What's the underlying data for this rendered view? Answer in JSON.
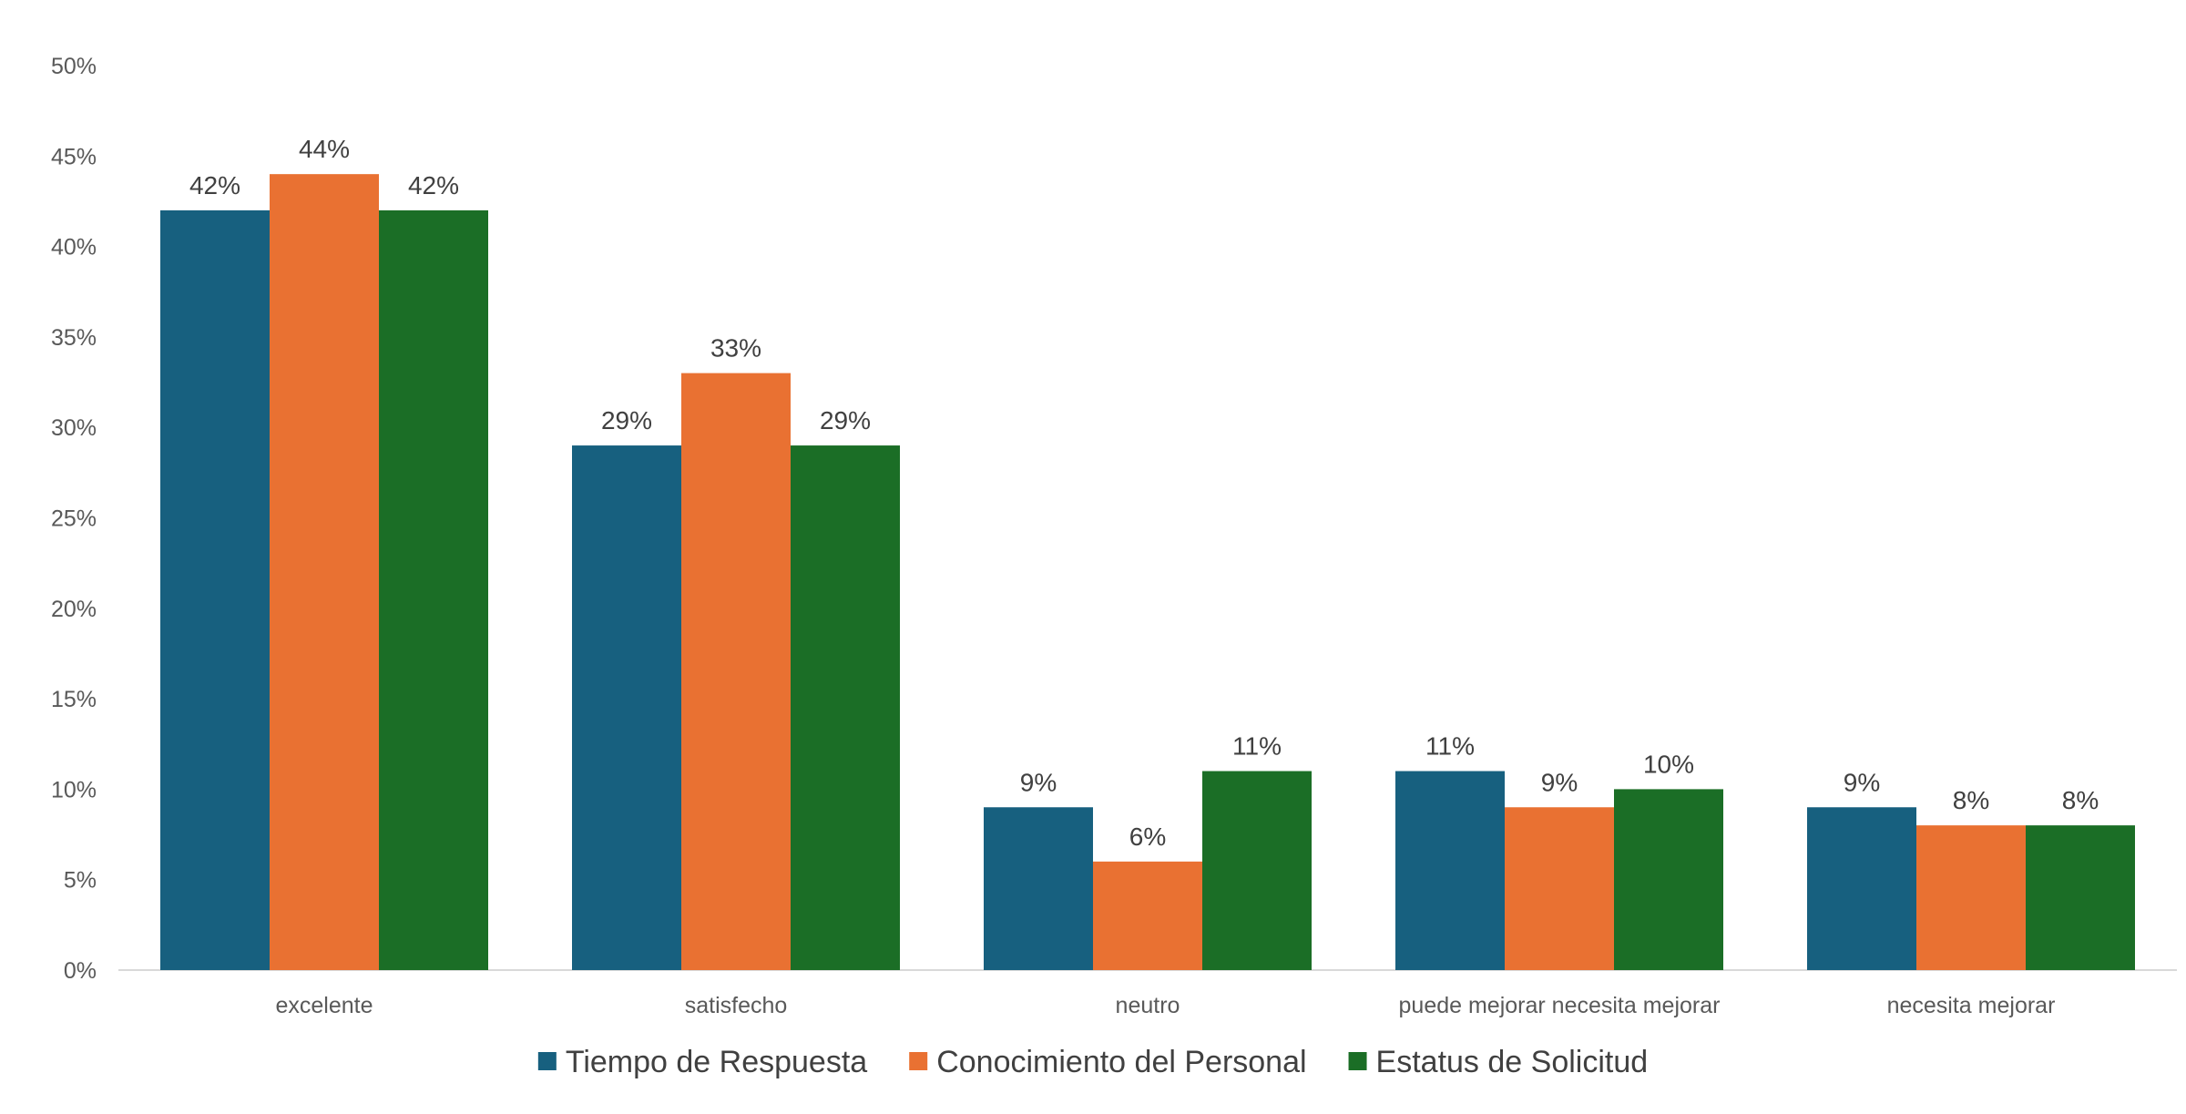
{
  "chart_data": {
    "type": "bar",
    "categories": [
      "excelente",
      "satisfecho",
      "neutro",
      "puede mejorar necesita mejorar",
      "necesita mejorar"
    ],
    "series": [
      {
        "name": "Tiempo de Respuesta",
        "color": "#17607f",
        "values": [
          42,
          29,
          9,
          11,
          9
        ],
        "labels": [
          "42%",
          "29%",
          "9%",
          "11%",
          "9%"
        ]
      },
      {
        "name": "Conocimiento del Personal",
        "color": "#e97132",
        "values": [
          44,
          33,
          6,
          9,
          8
        ],
        "labels": [
          "44%",
          "33%",
          "6%",
          "9%",
          "8%"
        ]
      },
      {
        "name": "Estatus de Solicitud",
        "color": "#1b6e26",
        "values": [
          42,
          29,
          11,
          10,
          8
        ],
        "labels": [
          "42%",
          "29%",
          "11%",
          "10%",
          "8%"
        ]
      }
    ],
    "ylim": [
      0,
      50
    ],
    "yticks": [
      0,
      5,
      10,
      15,
      20,
      25,
      30,
      35,
      40,
      45,
      50
    ],
    "ytick_labels": [
      "0%",
      "5%",
      "10%",
      "15%",
      "20%",
      "25%",
      "30%",
      "35%",
      "40%",
      "45%",
      "50%"
    ],
    "grid": false,
    "legend_position": "bottom"
  }
}
